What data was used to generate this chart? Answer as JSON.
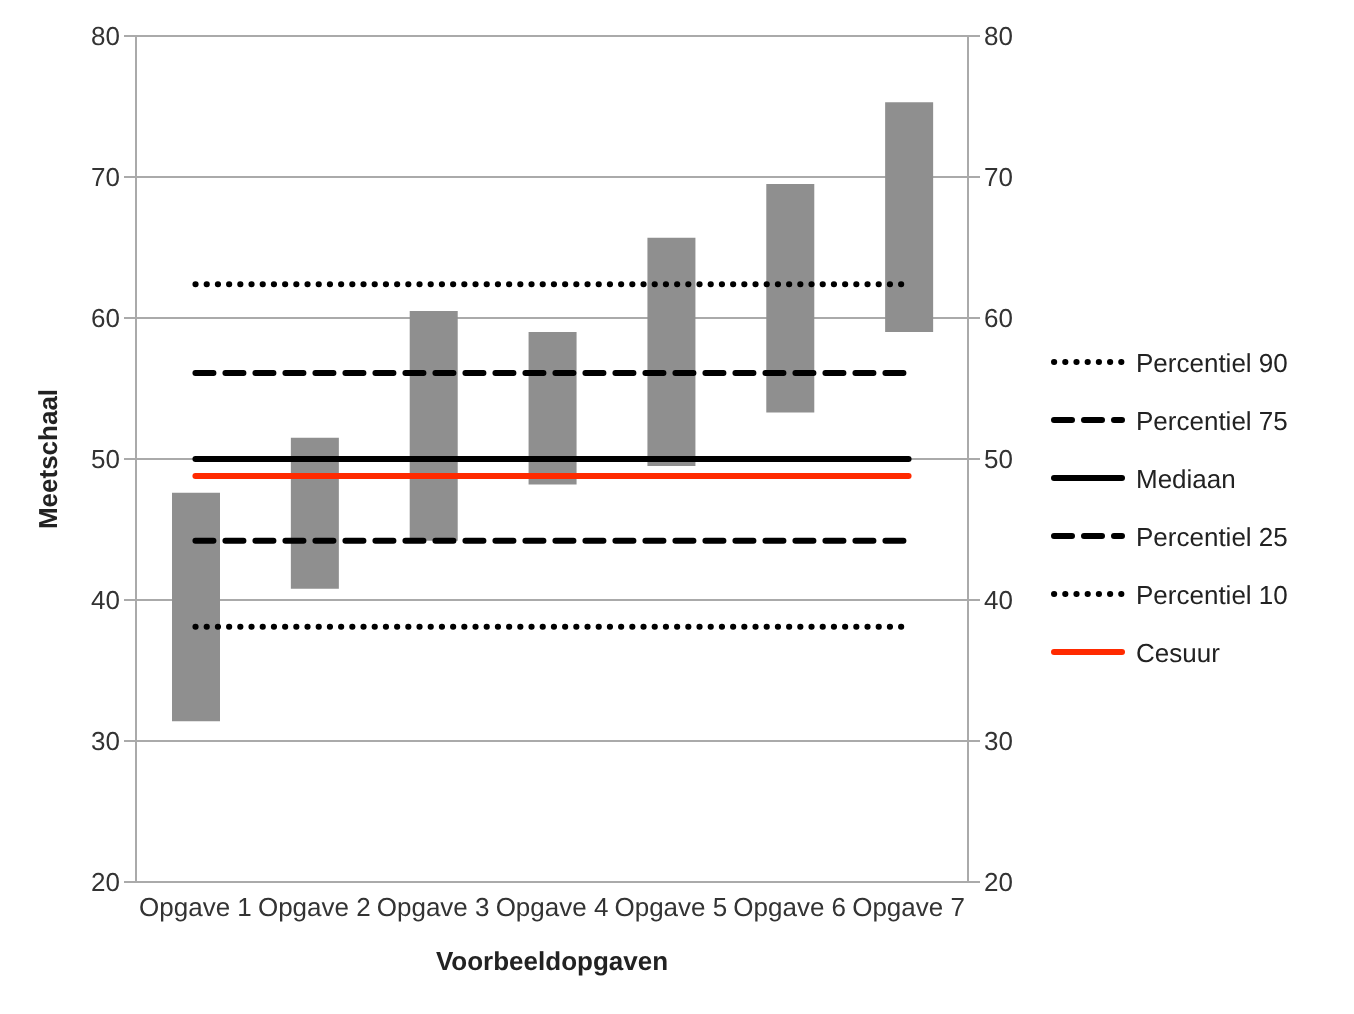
{
  "chart_data": {
    "type": "bar",
    "xlabel": "Voorbeeldopgaven",
    "ylabel": "Meetschaal",
    "categories": [
      "Opgave 1",
      "Opgave 2",
      "Opgave 3",
      "Opgave 4",
      "Opgave 5",
      "Opgave 6",
      "Opgave 7"
    ],
    "base": [
      31.4,
      40.8,
      44.2,
      48.2,
      49.5,
      53.3,
      59
    ],
    "values": [
      16.2,
      10.7,
      16.3,
      10.8,
      16.2,
      16.2,
      16.3
    ],
    "color": "#8f8f8f",
    "series": [
      {
        "name": "Percentiel 90",
        "type": "line",
        "line_style": "dotted",
        "color": "#000000",
        "values": [
          62.4,
          62.4,
          62.4,
          62.4,
          62.4,
          62.4,
          62.4
        ]
      },
      {
        "name": "Percentiel 75",
        "type": "line",
        "line_style": "dashed",
        "color": "#000000",
        "values": [
          56.1,
          56.1,
          56.1,
          56.1,
          56.1,
          56.1,
          56.1
        ]
      },
      {
        "name": "Mediaan",
        "type": "line",
        "line_style": "solid",
        "color": "#000000",
        "values": [
          50,
          50,
          50,
          50,
          50,
          50,
          50
        ]
      },
      {
        "name": "Percentiel 25",
        "type": "line",
        "line_style": "dashed",
        "color": "#000000",
        "values": [
          44.2,
          44.2,
          44.2,
          44.2,
          44.2,
          44.2,
          44.2
        ]
      },
      {
        "name": "Percentiel 10",
        "type": "line",
        "line_style": "dotted",
        "color": "#000000",
        "values": [
          38.1,
          38.1,
          38.1,
          38.1,
          38.1,
          38.1,
          38.1
        ]
      },
      {
        "name": "Cesuur",
        "type": "line",
        "line_style": "solid",
        "color": "#ff2a00",
        "values": [
          48.8,
          48.8,
          48.8,
          48.8,
          48.8,
          48.8,
          48.8
        ]
      }
    ],
    "ylim": [
      20,
      80
    ],
    "yticks": [
      20,
      30,
      40,
      50,
      60,
      70,
      80
    ],
    "y2lim": [
      20,
      80
    ],
    "y2ticks": [
      20,
      30,
      40,
      50,
      60,
      70,
      80
    ],
    "grid": "y",
    "legend": "right",
    "marker": "none"
  }
}
